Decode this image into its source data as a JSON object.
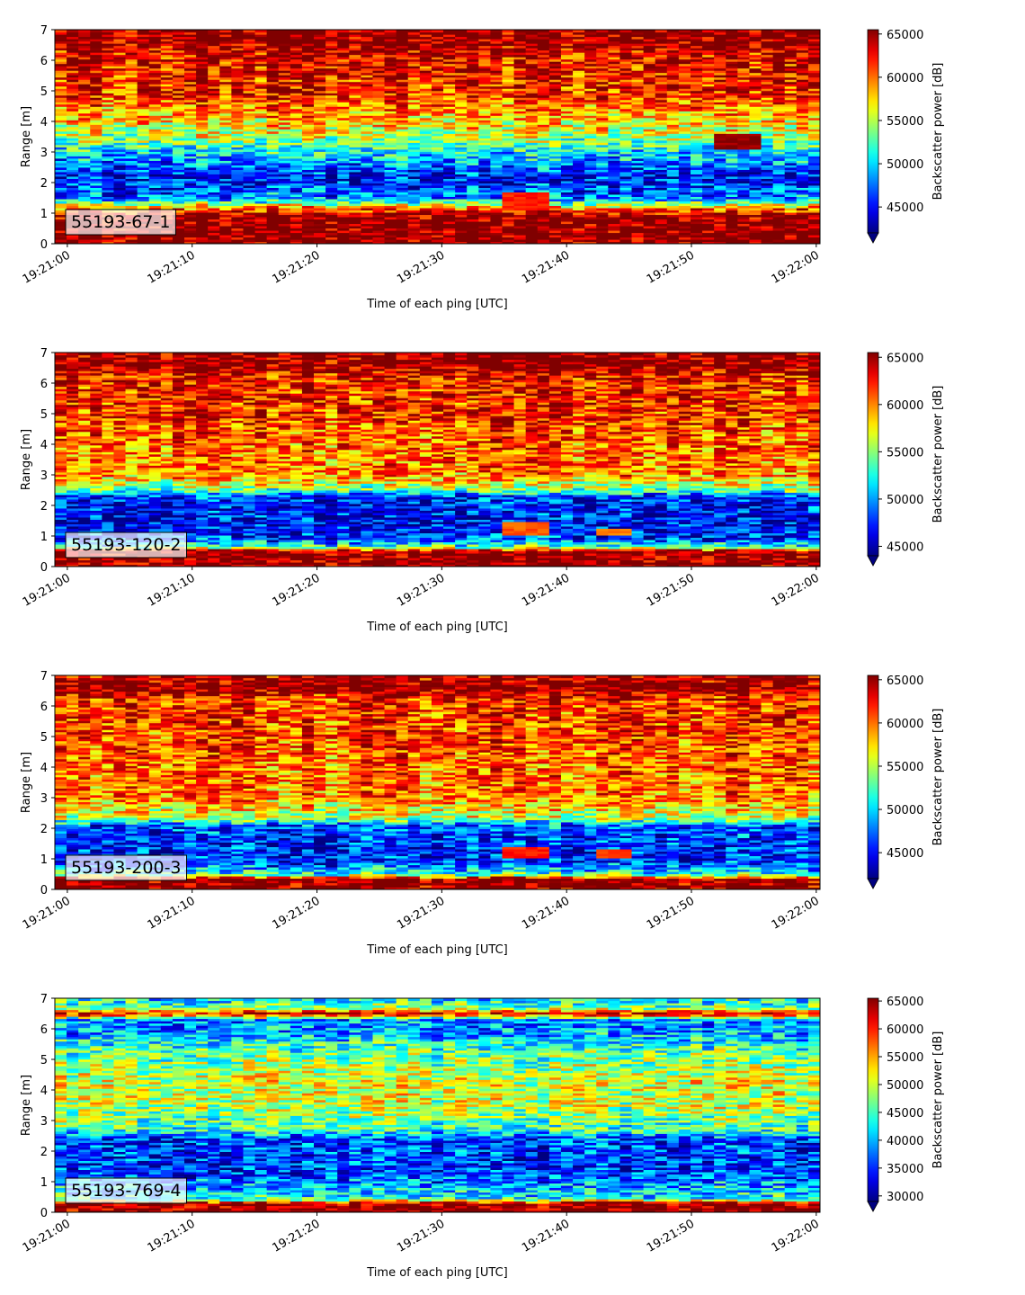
{
  "chart_data": [
    {
      "type": "heatmap",
      "label": "55193-67-1",
      "xlabel": "Time of each ping [UTC]",
      "ylabel": "Range [m]",
      "colorbar_label": "Backscatter power [dB]",
      "colormap": "jet",
      "colorbar_extend": "min",
      "xlim": [
        "19:20:59.0",
        "19:22:00.3"
      ],
      "ylim": [
        0,
        7
      ],
      "x_ticks": [
        "19:21:00",
        "19:21:10",
        "19:21:20",
        "19:21:30",
        "19:21:40",
        "19:21:50",
        "19:22:00"
      ],
      "y_ticks": [
        0,
        1,
        2,
        3,
        4,
        5,
        6,
        7
      ],
      "vmin": 42000,
      "vmax": 65500,
      "colorbar_ticks": [
        45000,
        50000,
        55000,
        60000,
        65000
      ],
      "colorbar_tick_labels": [
        "45000",
        "50000",
        "55000",
        "60000",
        "65000"
      ],
      "profile": [
        {
          "range": 0.0,
          "value": 65500
        },
        {
          "range": 0.25,
          "value": 65500
        },
        {
          "range": 0.9,
          "value": 65500
        },
        {
          "range": 1.15,
          "value": 60000
        },
        {
          "range": 1.5,
          "value": 48000
        },
        {
          "range": 2.2,
          "value": 45000
        },
        {
          "range": 2.7,
          "value": 48500
        },
        {
          "range": 3.1,
          "value": 51000
        },
        {
          "range": 3.5,
          "value": 55000
        },
        {
          "range": 4.2,
          "value": 58500
        },
        {
          "range": 5.0,
          "value": 62000
        },
        {
          "range": 6.2,
          "value": 63000
        },
        {
          "range": 6.6,
          "value": 65500
        },
        {
          "range": 7.0,
          "value": 65500
        }
      ],
      "features": [
        {
          "t_start": "19:21:35",
          "t_end": "19:21:38.5",
          "range_low": 1.1,
          "range_high": 1.7,
          "value": 62000
        },
        {
          "t_start": "19:21:52",
          "t_end": "19:21:56",
          "range_low": 3.1,
          "range_high": 3.6,
          "value": 65000
        }
      ]
    },
    {
      "type": "heatmap",
      "label": "55193-120-2",
      "xlabel": "Time of each ping [UTC]",
      "ylabel": "Range [m]",
      "colorbar_label": "Backscatter power [dB]",
      "colormap": "jet",
      "colorbar_extend": "min",
      "xlim": [
        "19:20:59.0",
        "19:22:00.3"
      ],
      "ylim": [
        0,
        7
      ],
      "x_ticks": [
        "19:21:00",
        "19:21:10",
        "19:21:20",
        "19:21:30",
        "19:21:40",
        "19:21:50",
        "19:22:00"
      ],
      "y_ticks": [
        0,
        1,
        2,
        3,
        4,
        5,
        6,
        7
      ],
      "vmin": 44000,
      "vmax": 65500,
      "colorbar_ticks": [
        45000,
        50000,
        55000,
        60000,
        65000
      ],
      "colorbar_tick_labels": [
        "45000",
        "50000",
        "55000",
        "60000",
        "65000"
      ],
      "profile": [
        {
          "range": 0.0,
          "value": 65500
        },
        {
          "range": 0.5,
          "value": 65500
        },
        {
          "range": 0.65,
          "value": 54000
        },
        {
          "range": 0.9,
          "value": 48000
        },
        {
          "range": 1.5,
          "value": 46500
        },
        {
          "range": 2.3,
          "value": 47500
        },
        {
          "range": 2.5,
          "value": 54000
        },
        {
          "range": 3.0,
          "value": 60000
        },
        {
          "range": 4.0,
          "value": 60500
        },
        {
          "range": 5.0,
          "value": 62000
        },
        {
          "range": 6.2,
          "value": 62500
        },
        {
          "range": 6.6,
          "value": 65500
        },
        {
          "range": 7.0,
          "value": 65500
        }
      ],
      "features": [
        {
          "t_start": "19:21:35",
          "t_end": "19:21:38.5",
          "range_low": 1.0,
          "range_high": 1.45,
          "value": 61000
        },
        {
          "t_start": "19:21:42",
          "t_end": "19:21:45",
          "range_low": 1.0,
          "range_high": 1.25,
          "value": 60000
        }
      ]
    },
    {
      "type": "heatmap",
      "label": "55193-200-3",
      "xlabel": "Time of each ping [UTC]",
      "ylabel": "Range [m]",
      "colorbar_label": "Backscatter power [dB]",
      "colormap": "jet",
      "colorbar_extend": "min",
      "xlim": [
        "19:20:59.0",
        "19:22:00.3"
      ],
      "ylim": [
        0,
        7
      ],
      "x_ticks": [
        "19:21:00",
        "19:21:10",
        "19:21:20",
        "19:21:30",
        "19:21:40",
        "19:21:50",
        "19:22:00"
      ],
      "y_ticks": [
        0,
        1,
        2,
        3,
        4,
        5,
        6,
        7
      ],
      "vmin": 42000,
      "vmax": 65500,
      "colorbar_ticks": [
        45000,
        50000,
        55000,
        60000,
        65000
      ],
      "colorbar_tick_labels": [
        "45000",
        "50000",
        "55000",
        "60000",
        "65000"
      ],
      "profile": [
        {
          "range": 0.0,
          "value": 65500
        },
        {
          "range": 0.35,
          "value": 65500
        },
        {
          "range": 0.5,
          "value": 52000
        },
        {
          "range": 0.9,
          "value": 46000
        },
        {
          "range": 1.5,
          "value": 45500
        },
        {
          "range": 2.1,
          "value": 47000
        },
        {
          "range": 2.35,
          "value": 55000
        },
        {
          "range": 3.0,
          "value": 59500
        },
        {
          "range": 4.0,
          "value": 60000
        },
        {
          "range": 5.0,
          "value": 61000
        },
        {
          "range": 6.2,
          "value": 61500
        },
        {
          "range": 6.6,
          "value": 65500
        },
        {
          "range": 7.0,
          "value": 63500
        }
      ],
      "features": [
        {
          "t_start": "19:21:35",
          "t_end": "19:21:38.5",
          "range_low": 1.0,
          "range_high": 1.4,
          "value": 62000
        },
        {
          "t_start": "19:21:42",
          "t_end": "19:21:45",
          "range_low": 1.05,
          "range_high": 1.3,
          "value": 61000
        }
      ]
    },
    {
      "type": "heatmap",
      "label": "55193-769-4",
      "xlabel": "Time of each ping [UTC]",
      "ylabel": "Range [m]",
      "colorbar_label": "Backscatter power [dB]",
      "colormap": "jet",
      "colorbar_extend": "min",
      "xlim": [
        "19:20:59.0",
        "19:22:00.3"
      ],
      "ylim": [
        0,
        7
      ],
      "x_ticks": [
        "19:21:00",
        "19:21:10",
        "19:21:20",
        "19:21:30",
        "19:21:40",
        "19:21:50",
        "19:22:00"
      ],
      "y_ticks": [
        0,
        1,
        2,
        3,
        4,
        5,
        6,
        7
      ],
      "vmin": 29000,
      "vmax": 65500,
      "colorbar_ticks": [
        30000,
        35000,
        40000,
        45000,
        50000,
        55000,
        60000,
        65000
      ],
      "colorbar_tick_labels": [
        "30000",
        "35000",
        "40000",
        "45000",
        "50000",
        "55000",
        "60000",
        "65000"
      ],
      "profile": [
        {
          "range": 0.0,
          "value": 65500
        },
        {
          "range": 0.3,
          "value": 65500
        },
        {
          "range": 0.45,
          "value": 43000
        },
        {
          "range": 0.8,
          "value": 40000
        },
        {
          "range": 1.4,
          "value": 35000
        },
        {
          "range": 2.4,
          "value": 36000
        },
        {
          "range": 2.7,
          "value": 44000
        },
        {
          "range": 3.5,
          "value": 49500
        },
        {
          "range": 4.2,
          "value": 51000
        },
        {
          "range": 5.2,
          "value": 46500
        },
        {
          "range": 5.9,
          "value": 39000
        },
        {
          "range": 6.3,
          "value": 38000
        },
        {
          "range": 6.5,
          "value": 63000
        },
        {
          "range": 6.7,
          "value": 46000
        },
        {
          "range": 7.0,
          "value": 42000
        }
      ],
      "features": []
    }
  ]
}
